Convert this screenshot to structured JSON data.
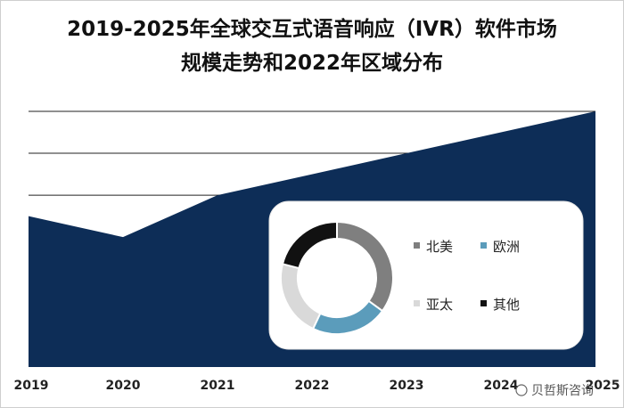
{
  "title_line1": "2019-2025年全球交互式语音响应（IVR）软件市场",
  "title_line2": "规模走势和2022年区域分布",
  "watermark": "贝哲斯咨询",
  "chart_data": [
    {
      "type": "area",
      "title": "2019-2025年全球交互式语音响应（IVR）软件市场规模走势和2022年区域分布",
      "categories": [
        "2019",
        "2020",
        "2021",
        "2022",
        "2023",
        "2024",
        "2025"
      ],
      "values": [
        3.6,
        3.1,
        4.1,
        4.6,
        5.1,
        5.6,
        6.1
      ],
      "ylim": [
        0,
        6.1
      ],
      "grid": true,
      "color": "#0d2d57"
    },
    {
      "type": "pie",
      "variant": "donut",
      "categories": [
        "北美",
        "欧洲",
        "亚太",
        "其他"
      ],
      "values": [
        35,
        22,
        22,
        21
      ],
      "colors": [
        "#7f7f7f",
        "#5b9cbb",
        "#d9d9d9",
        "#111111"
      ],
      "legend_position": "right"
    }
  ]
}
